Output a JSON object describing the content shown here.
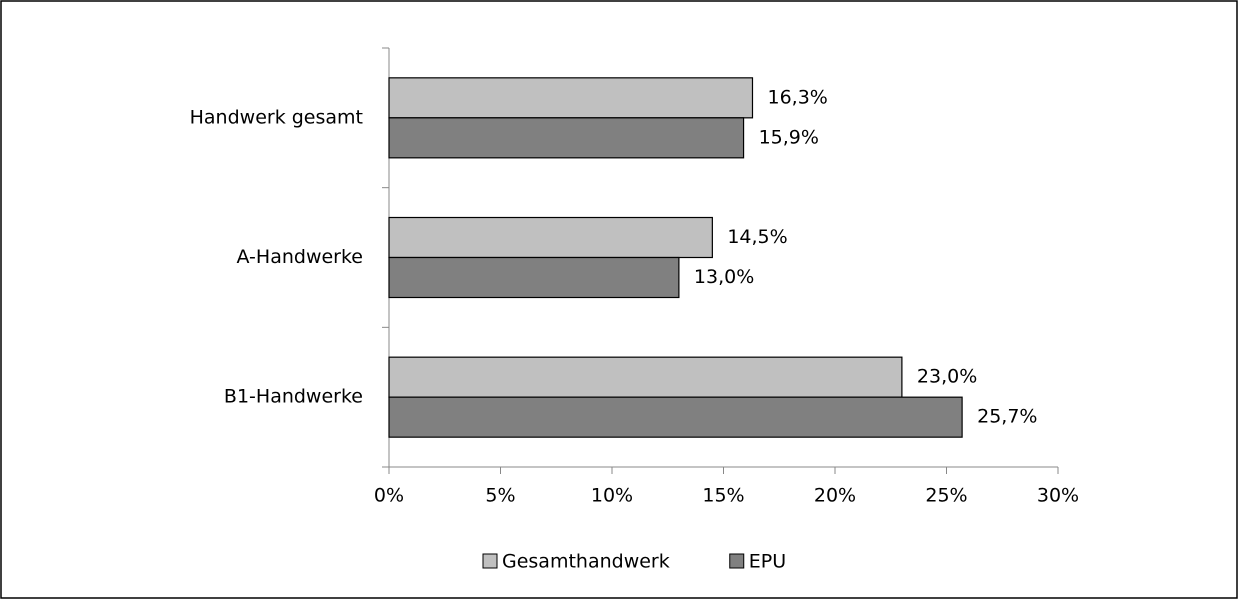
{
  "chart_data": {
    "type": "hbar",
    "categories": [
      "Handwerk gesamt",
      "A-Handwerke",
      "B1-Handwerke"
    ],
    "series": [
      {
        "name": "Gesamthandwerk",
        "color": "#c0c0c0",
        "values": [
          16.3,
          14.5,
          23.0
        ],
        "value_labels": [
          "16,3%",
          "14,5%",
          "23,0%"
        ]
      },
      {
        "name": "EPU",
        "color": "#808080",
        "values": [
          15.9,
          13.0,
          25.7
        ],
        "value_labels": [
          "15,9%",
          "13,0%",
          "25,7%"
        ]
      }
    ],
    "xlim": [
      0,
      30
    ],
    "xticks": [
      {
        "value": 0,
        "label": "0%"
      },
      {
        "value": 5,
        "label": "5%"
      },
      {
        "value": 10,
        "label": "10%"
      },
      {
        "value": 15,
        "label": "15%"
      },
      {
        "value": 20,
        "label": "20%"
      },
      {
        "value": 25,
        "label": "25%"
      },
      {
        "value": 30,
        "label": "30%"
      }
    ],
    "legend": "bottom"
  }
}
